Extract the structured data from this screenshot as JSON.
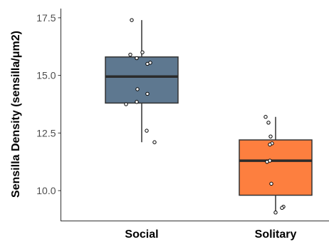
{
  "chart_data": {
    "type": "boxplot",
    "ylabel": "Sensilla Density (sensilla/μm2)",
    "xlabel": "",
    "ylim": [
      8.7,
      17.9
    ],
    "y_ticks": [
      10.0,
      12.5,
      15.0,
      17.5
    ],
    "y_tick_labels": [
      "10.0",
      "12.5",
      "15.0",
      "17.5"
    ],
    "grid": false,
    "categories": [
      "Social",
      "Solitary"
    ],
    "boxes": [
      {
        "category": "Social",
        "fill": "#5e7890",
        "min": 12.1,
        "q1": 13.8,
        "median": 14.95,
        "q3": 15.8,
        "max": 17.4,
        "points": [
          17.4,
          16.0,
          15.9,
          15.75,
          15.55,
          15.5,
          14.4,
          14.2,
          13.85,
          13.75,
          12.6,
          12.1
        ]
      },
      {
        "category": "Solitary",
        "fill": "#fd7f3f",
        "min": 9.1,
        "q1": 9.8,
        "median": 11.3,
        "q3": 12.2,
        "max": 13.2,
        "points": [
          13.2,
          12.95,
          12.35,
          12.05,
          12.0,
          11.3,
          11.25,
          10.3,
          9.3,
          9.25,
          9.05
        ]
      }
    ]
  }
}
